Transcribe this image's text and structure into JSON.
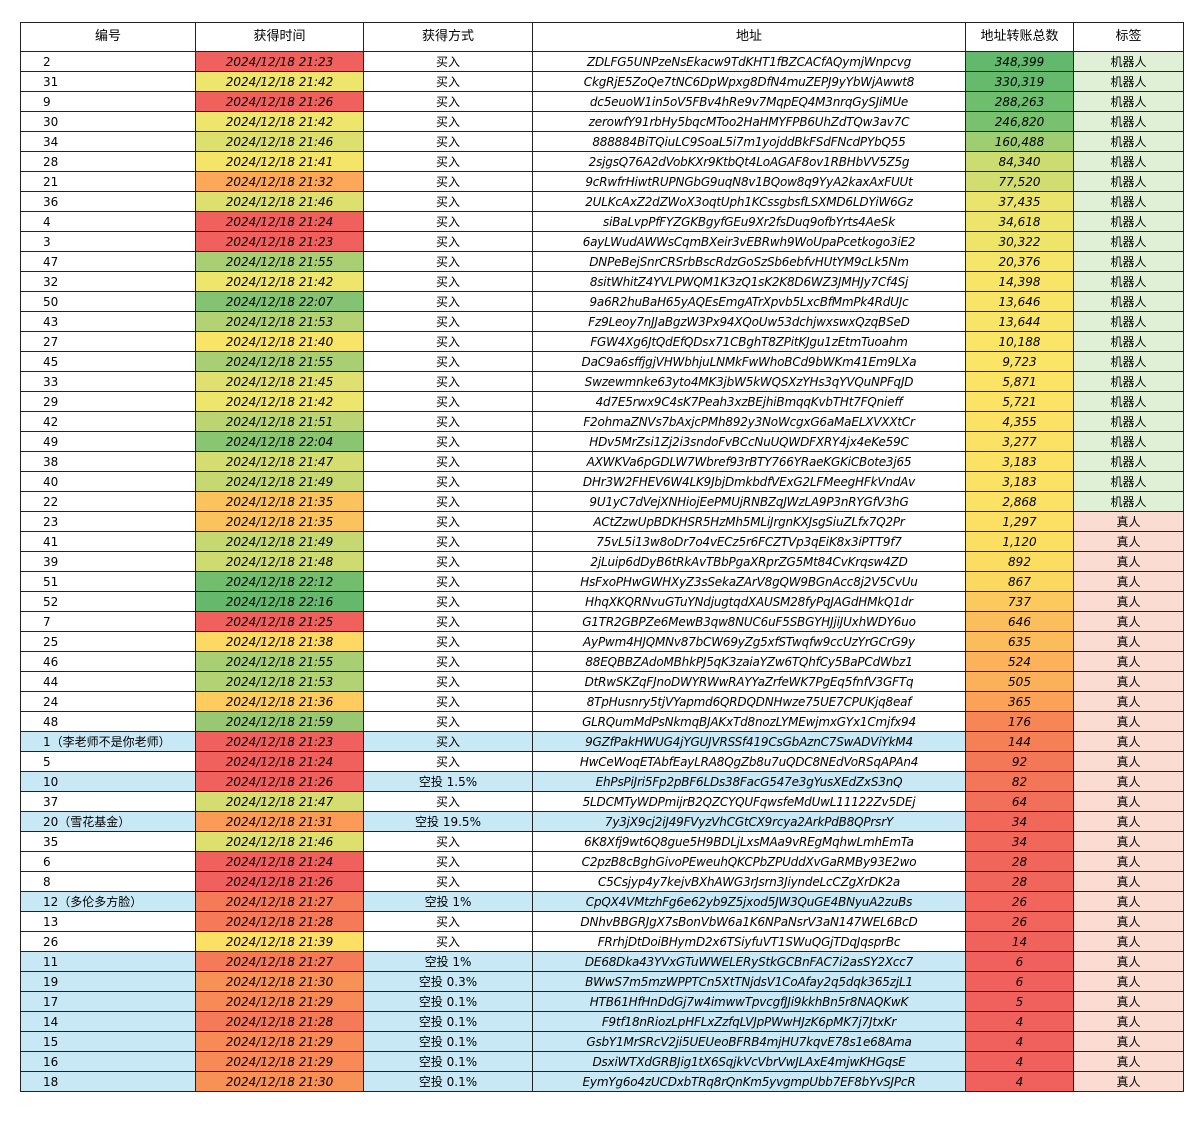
{
  "headers": [
    "编号",
    "获得时间",
    "获得方式",
    "地址",
    "地址转账总数",
    "标签"
  ],
  "colors": {
    "time": {
      "21:23": "#f0615d",
      "21:24": "#f0615d",
      "21:25": "#f0615d",
      "21:26": "#f0615d",
      "21:27": "#f47a58",
      "21:28": "#f47a58",
      "21:29": "#f78a57",
      "21:30": "#f89156",
      "21:31": "#fb9b57",
      "21:32": "#fca858",
      "21:35": "#fbc35d",
      "21:36": "#fccc5f",
      "21:38": "#fbd962",
      "21:39": "#fbe065",
      "21:40": "#f8e567",
      "21:41": "#f4e467",
      "21:42": "#ede56c",
      "21:45": "#dfe06f",
      "21:46": "#dde06f",
      "21:47": "#d5dd70",
      "21:48": "#cedb71",
      "21:49": "#c5d872",
      "21:51": "#bcd572",
      "21:53": "#b3d274",
      "21:55": "#a8cf73",
      "21:59": "#98c972",
      "22:04": "#8ac572",
      "22:07": "#84c371",
      "22:12": "#72bd6e",
      "22:16": "#66b96c"
    },
    "highlight": "#c9e8f5",
    "tag_bot": "#dff0d6",
    "tag_human": "#fbdcd2"
  },
  "rows": [
    {
      "id": "2",
      "time": "2024/12/18  21:23",
      "method": "买入",
      "address": "ZDLFG5UNPzeNsEkacw9TdKHT1fBZCACfAQymjWnpcvg",
      "count": "348,399",
      "tag": "机器人",
      "count_color": "#62b96d",
      "hl": false
    },
    {
      "id": "31",
      "time": "2024/12/18  21:42",
      "method": "买入",
      "address": "CkgRjE5ZoQe7tNC6DpWpxg8DfN4muZEPJ9yYbWjAwwt8",
      "count": "330,319",
      "tag": "机器人",
      "count_color": "#66ba6d",
      "hl": false
    },
    {
      "id": "9",
      "time": "2024/12/18  21:26",
      "method": "买入",
      "address": "dc5euoW1in5oV5FBv4hRe9v7MqpEQ4M3nrqGySJiMUe",
      "count": "288,263",
      "tag": "机器人",
      "count_color": "#6fbd6e",
      "hl": false
    },
    {
      "id": "30",
      "time": "2024/12/18  21:42",
      "method": "买入",
      "address": "zerowfY91rbHy5bqcMToo2HaHMYFPB6UhZdTQw3av7C",
      "count": "246,820",
      "tag": "机器人",
      "count_color": "#79c06f",
      "hl": false
    },
    {
      "id": "34",
      "time": "2024/12/18  21:46",
      "method": "买入",
      "address": "888884BiTQiuLC9SoaL5i7m1yojddBkFSdFNcdPYbQ55",
      "count": "160,488",
      "tag": "机器人",
      "count_color": "#9fcd72",
      "hl": false
    },
    {
      "id": "28",
      "time": "2024/12/18  21:41",
      "method": "买入",
      "address": "2sjgsQ76A2dVobKXr9KtbQt4LoAGAF8ov1RBHbVV5Z5g",
      "count": "84,340",
      "tag": "机器人",
      "count_color": "#ccdc71",
      "hl": false
    },
    {
      "id": "21",
      "time": "2024/12/18  21:32",
      "method": "买入",
      "address": "9cRwfrHiwtRUPNGbG9uqN8v1BQow8q9YyA2kaxAxFUUt",
      "count": "77,520",
      "tag": "机器人",
      "count_color": "#d2dd71",
      "hl": false
    },
    {
      "id": "36",
      "time": "2024/12/18  21:46",
      "method": "买入",
      "address": "2ULKcAxZ2dZWoX3oqtUph1KCssgbsfLSXMD6LDYiW6Gz",
      "count": "37,435",
      "tag": "机器人",
      "count_color": "#eae46c",
      "hl": false
    },
    {
      "id": "4",
      "time": "2024/12/18  21:24",
      "method": "买入",
      "address": "siBaLvpPfFYZGKBgyfGEu9Xr2fsDuq9ofbYrts4AeSk",
      "count": "34,618",
      "tag": "机器人",
      "count_color": "#ece46b",
      "hl": false
    },
    {
      "id": "3",
      "time": "2024/12/18  21:23",
      "method": "买入",
      "address": "6ayLWudAWWsCqmBXeir3vEBRwh9WoUpaPcetkogo3iE2",
      "count": "30,322",
      "tag": "机器人",
      "count_color": "#efe46a",
      "hl": false
    },
    {
      "id": "47",
      "time": "2024/12/18  21:55",
      "method": "买入",
      "address": "DNPeBejSnrCRSrbBscRdzGoSzSb6ebfvHUtYM9cLk5Nm",
      "count": "20,376",
      "tag": "机器人",
      "count_color": "#f5e568",
      "hl": false
    },
    {
      "id": "32",
      "time": "2024/12/18  21:42",
      "method": "买入",
      "address": "8sitWhitZ4YVLPWQM1K3zQ1sK2K8D6WZ3JMHJy7Cf4Sj",
      "count": "14,398",
      "tag": "机器人",
      "count_color": "#f8e567",
      "hl": false
    },
    {
      "id": "50",
      "time": "2024/12/18  22:07",
      "method": "买入",
      "address": "9a6R2huBaH65yAQEsEmgATrXpvb5LxcBfMmPk4RdUJc",
      "count": "13,646",
      "tag": "机器人",
      "count_color": "#f8e567",
      "hl": false
    },
    {
      "id": "43",
      "time": "2024/12/18  21:53",
      "method": "买入",
      "address": "Fz9Leoy7nJJaBgzW3Px94XQoUw53dchjwxswxQzqBSeD",
      "count": "13,644",
      "tag": "机器人",
      "count_color": "#f8e567",
      "hl": false
    },
    {
      "id": "27",
      "time": "2024/12/18  21:40",
      "method": "买入",
      "address": "FGW4Xg6JtQdEfQDsx71CBghT8ZPitKJgu1zEtmTuoahm",
      "count": "10,188",
      "tag": "机器人",
      "count_color": "#fae566",
      "hl": false
    },
    {
      "id": "45",
      "time": "2024/12/18  21:55",
      "method": "买入",
      "address": "DaC9a6sffjgjVHWbhjuLNMkFwWhoBCd9bWKm41Em9LXa",
      "count": "9,723",
      "tag": "机器人",
      "count_color": "#fae566",
      "hl": false
    },
    {
      "id": "33",
      "time": "2024/12/18  21:45",
      "method": "买入",
      "address": "Swzewmnke63yto4MK3jbW5kWQSXzYHs3qYVQuNPFqJD",
      "count": "5,871",
      "tag": "机器人",
      "count_color": "#fbe465",
      "hl": false
    },
    {
      "id": "29",
      "time": "2024/12/18  21:42",
      "method": "买入",
      "address": "4d7E5rwx9C4sK7Peah3xzBEjhiBmqqKvbTHt7FQnieff",
      "count": "5,721",
      "tag": "机器人",
      "count_color": "#fbe465",
      "hl": false
    },
    {
      "id": "42",
      "time": "2024/12/18  21:51",
      "method": "买入",
      "address": "F2ohmaZNVs7bAxjcPMh892y3NoWcgxG6aMaELXVXXtCr",
      "count": "4,355",
      "tag": "机器人",
      "count_color": "#fbe264",
      "hl": false
    },
    {
      "id": "49",
      "time": "2024/12/18  22:04",
      "method": "买入",
      "address": "HDv5MrZsi1Zj2i3sndoFvBCcNuUQWDFXRY4jx4eKe59C",
      "count": "3,277",
      "tag": "机器人",
      "count_color": "#fbe264",
      "hl": false
    },
    {
      "id": "38",
      "time": "2024/12/18  21:47",
      "method": "买入",
      "address": "AXWKVa6pGDLW7Wbref93rBTY766YRaeKGKiCBote3j65",
      "count": "3,183",
      "tag": "机器人",
      "count_color": "#fbe264",
      "hl": false
    },
    {
      "id": "40",
      "time": "2024/12/18  21:49",
      "method": "买入",
      "address": "DHr3W2FHEV6W4LK9JbjDmkbdfVExG2LFMeegHFkVndAv",
      "count": "3,183",
      "tag": "机器人",
      "count_color": "#fbe264",
      "hl": false
    },
    {
      "id": "22",
      "time": "2024/12/18  21:35",
      "method": "买入",
      "address": "9U1yC7dVejXNHiojEePMUjRNBZqJWzLA9P3nRYGfV3hG",
      "count": "2,868",
      "tag": "机器人",
      "count_color": "#fbe164",
      "hl": false
    },
    {
      "id": "23",
      "time": "2024/12/18  21:35",
      "method": "买入",
      "address": "ACtZzwUpBDKHSR5HzMh5MLiJrgnKXJsgSiuZLfx7Q2Pr",
      "count": "1,297",
      "tag": "真人",
      "count_color": "#fbe063",
      "hl": false
    },
    {
      "id": "41",
      "time": "2024/12/18  21:49",
      "method": "买入",
      "address": "75vL5i13w8oDr7o4vECz5r6FCZTVp3qEiK8x3iPTT9f7",
      "count": "1,120",
      "tag": "真人",
      "count_color": "#fbdf63",
      "hl": false
    },
    {
      "id": "39",
      "time": "2024/12/18  21:48",
      "method": "买入",
      "address": "2jLuip6dDyB6tRkAvTBbPgaXRprZG5Mt84CvKrqsw4ZD",
      "count": "892",
      "tag": "真人",
      "count_color": "#fbdd62",
      "hl": false
    },
    {
      "id": "51",
      "time": "2024/12/18  22:12",
      "method": "买入",
      "address": "HsFxoPHwGWHXyZ3sSekaZArV8gQW9BGnAcc8j2V5CvUu",
      "count": "867",
      "tag": "真人",
      "count_color": "#fbd961",
      "hl": false
    },
    {
      "id": "52",
      "time": "2024/12/18  22:16",
      "method": "买入",
      "address": "HhqXKQRNvuGTuYNdjugtqdXAUSM28fyPqJAGdHMkQ1dr",
      "count": "737",
      "tag": "真人",
      "count_color": "#fbc95e",
      "hl": false
    },
    {
      "id": "7",
      "time": "2024/12/18  21:25",
      "method": "买入",
      "address": "G1TR2GBPZe6MewB3qw8NUC6uF5SBGYHJjiJUxhWDY6uo",
      "count": "646",
      "tag": "真人",
      "count_color": "#fbbe5c",
      "hl": false
    },
    {
      "id": "25",
      "time": "2024/12/18  21:38",
      "method": "买入",
      "address": "AyPwm4HJQMNv87bCW69yZg5xfSTwqfw9ccUzYrGCrG9y",
      "count": "635",
      "tag": "真人",
      "count_color": "#fbbc5c",
      "hl": false
    },
    {
      "id": "46",
      "time": "2024/12/18  21:55",
      "method": "买入",
      "address": "88EQBBZAdoMBhkPJ5qK3zaiaYZw6TQhfCy5BaPCdWbz1",
      "count": "524",
      "tag": "真人",
      "count_color": "#fbb25a",
      "hl": false
    },
    {
      "id": "44",
      "time": "2024/12/18  21:53",
      "method": "买入",
      "address": "DtRwSKZqFJnoDWYRWwRAYYaZrfeWK7PgEq5fnfV3GFTq",
      "count": "505",
      "tag": "真人",
      "count_color": "#fbb05a",
      "hl": false
    },
    {
      "id": "24",
      "time": "2024/12/18  21:36",
      "method": "买入",
      "address": "8TpHusnry5tjVYapmd6QRDQDNHwze75UE7CPUKjq8eaf",
      "count": "365",
      "tag": "真人",
      "count_color": "#f9a258",
      "hl": false
    },
    {
      "id": "48",
      "time": "2024/12/18  21:59",
      "method": "买入",
      "address": "GLRQumMdPsNkmqBJAKxTd8nozLYMEwjmxGYx1Cmjfx94",
      "count": "176",
      "tag": "真人",
      "count_color": "#f68656",
      "hl": false
    },
    {
      "id": "1（李老师不是你老师）",
      "time": "2024/12/18  21:23",
      "method": "买入",
      "address": "9GZfPakHWUG4jYGUJVRSSf419CsGbAznC7SwADViYkM4",
      "count": "144",
      "tag": "真人",
      "count_color": "#f58056",
      "hl": true
    },
    {
      "id": "5",
      "time": "2024/12/18  21:24",
      "method": "买入",
      "address": "HwCeWoqETAbfEayLRA8QgZb8u7uQDC8NEdVoRSqAPAn4",
      "count": "92",
      "tag": "真人",
      "count_color": "#f37858",
      "hl": false
    },
    {
      "id": "10",
      "time": "2024/12/18  21:26",
      "method": "空投 1.5%",
      "address": "EhPsPiJri5Fp2pBF6LDs38FacG547e3gYusXEdZxS3nQ",
      "count": "82",
      "tag": "真人",
      "count_color": "#f37658",
      "hl": true
    },
    {
      "id": "37",
      "time": "2024/12/18  21:47",
      "method": "买入",
      "address": "5LDCMTyWDPmijrB2QZCYQUFqwsfeMdUwL11122Zv5DEj",
      "count": "64",
      "tag": "真人",
      "count_color": "#f2705a",
      "hl": false
    },
    {
      "id": "20（雪花基金）",
      "time": "2024/12/18  21:31",
      "method": "空投 19.5%",
      "address": "7y3jX9cj2iJ49FVyzVhCGtCX9rcya2ArkPdB8QPrsrY",
      "count": "34",
      "tag": "真人",
      "count_color": "#f1685b",
      "hl": true
    },
    {
      "id": "35",
      "time": "2024/12/18  21:46",
      "method": "买入",
      "address": "6K8Xfj9wt6Q8gue5H9BDLjLxsMAa9vREgMqhwLmhEmTa",
      "count": "34",
      "tag": "真人",
      "count_color": "#f1685b",
      "hl": false
    },
    {
      "id": "6",
      "time": "2024/12/18  21:24",
      "method": "买入",
      "address": "C2pzB8cBghGivoPEweuhQKCPbZPUddXvGaRMBy93E2wo",
      "count": "28",
      "tag": "真人",
      "count_color": "#f1665b",
      "hl": false
    },
    {
      "id": "8",
      "time": "2024/12/18  21:26",
      "method": "买入",
      "address": "C5Csjyp4y7kejvBXhAWG3rJsrn3JiyndeLcCZgXrDK2a",
      "count": "28",
      "tag": "真人",
      "count_color": "#f1665b",
      "hl": false
    },
    {
      "id": "12（多伦多方脸）",
      "time": "2024/12/18  21:27",
      "method": "空投 1%",
      "address": "CpQX4VMtzhFg6e62yb9Z5jxod5JW3QuGE4BNyuA2zuBs",
      "count": "26",
      "tag": "真人",
      "count_color": "#f1655c",
      "hl": true
    },
    {
      "id": "13",
      "time": "2024/12/18  21:28",
      "method": "买入",
      "address": "DNhvBBGRJgX7sBonVbW6a1K6NPaNsrV3aN147WEL6BcD",
      "count": "26",
      "tag": "真人",
      "count_color": "#f1655c",
      "hl": false
    },
    {
      "id": "26",
      "time": "2024/12/18  21:39",
      "method": "买入",
      "address": "FRrhjDtDoiBHymD2x6TSiyfuVT1SWuQGjTDqJqsprBc",
      "count": "14",
      "tag": "真人",
      "count_color": "#f0625c",
      "hl": false
    },
    {
      "id": "11",
      "time": "2024/12/18  21:27",
      "method": "空投 1%",
      "address": "DE68Dka43YVxGTuWWELERyStkGCBnFAC7i2asSY2Xcc7",
      "count": "6",
      "tag": "真人",
      "count_color": "#f0605d",
      "hl": true
    },
    {
      "id": "19",
      "time": "2024/12/18  21:30",
      "method": "空投 0.3%",
      "address": "BWwS7m5mzWPPTCn5XtTNjdsV1CoAfay2q5dqk365zjL1",
      "count": "6",
      "tag": "真人",
      "count_color": "#f0605d",
      "hl": true
    },
    {
      "id": "17",
      "time": "2024/12/18  21:29",
      "method": "空投 0.1%",
      "address": "HTB61HfHnDdGj7w4imwwTpvcgfJJi9kkhBn5r8NAQKwK",
      "count": "5",
      "tag": "真人",
      "count_color": "#f0605d",
      "hl": true
    },
    {
      "id": "14",
      "time": "2024/12/18  21:28",
      "method": "空投 0.1%",
      "address": "F9tf18nRiozLpHFLxZzfqLVJpPWwHJzK6pMK7j7JtxKr",
      "count": "4",
      "tag": "真人",
      "count_color": "#f0605d",
      "hl": true
    },
    {
      "id": "15",
      "time": "2024/12/18  21:29",
      "method": "空投 0.1%",
      "address": "GsbY1MrSRcV2ji5UEUeoBFRB4mjHU7kqvE78s1e68Ama",
      "count": "4",
      "tag": "真人",
      "count_color": "#f0605d",
      "hl": true
    },
    {
      "id": "16",
      "time": "2024/12/18  21:29",
      "method": "空投 0.1%",
      "address": "DsxiWTXdGRBJig1tX6SqjkVcVbrVwJLAxE4mjwKHGqsE",
      "count": "4",
      "tag": "真人",
      "count_color": "#f0605d",
      "hl": true
    },
    {
      "id": "18",
      "time": "2024/12/18  21:30",
      "method": "空投 0.1%",
      "address": "EymYg6o4zUCDxbTRq8rQnKm5yvgmpUbb7EF8bYvSJPcR",
      "count": "4",
      "tag": "真人",
      "count_color": "#f0605d",
      "hl": true
    }
  ]
}
